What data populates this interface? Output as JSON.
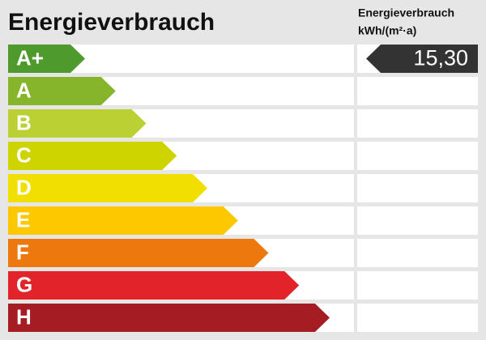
{
  "header": {
    "title": "Energieverbrauch",
    "unit_title": "Energieverbrauch",
    "unit": "kWh/(m²·a)"
  },
  "classes": [
    {
      "label": "A+",
      "color": "#4f9a2c"
    },
    {
      "label": "A",
      "color": "#86b42a"
    },
    {
      "label": "B",
      "color": "#bad033"
    },
    {
      "label": "C",
      "color": "#cdd400"
    },
    {
      "label": "D",
      "color": "#f0df00"
    },
    {
      "label": "E",
      "color": "#fdc800"
    },
    {
      "label": "F",
      "color": "#ec780e"
    },
    {
      "label": "G",
      "color": "#e2242a"
    },
    {
      "label": "H",
      "color": "#a51d23"
    }
  ],
  "indicator": {
    "value": "15,30",
    "color": "#333333"
  }
}
